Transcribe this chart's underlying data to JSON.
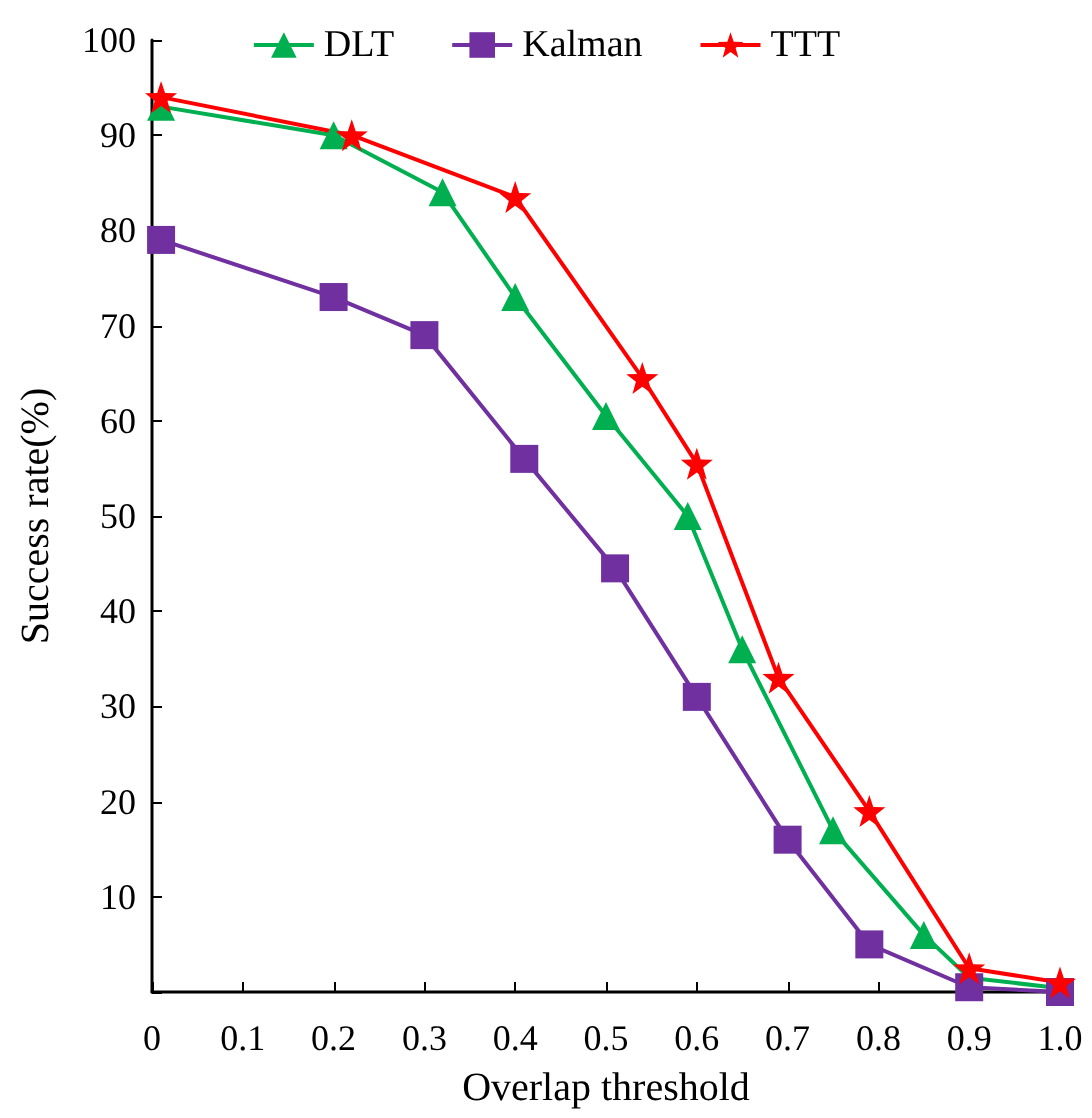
{
  "chart_data": {
    "type": "line",
    "xlabel": "Overlap threshold",
    "ylabel": "Success rate(%)",
    "xlim": [
      0,
      1
    ],
    "xticks": [
      0,
      0.1,
      0.2,
      0.3,
      0.4,
      0.5,
      0.6,
      0.7,
      0.8,
      0.9,
      {
        "value": 1,
        "label": "1.0"
      }
    ],
    "ylim": [
      0,
      100
    ],
    "yticks": [
      {
        "value": 0,
        "label": null
      },
      10,
      20,
      30,
      40,
      50,
      60,
      70,
      80,
      90,
      100
    ],
    "grid": false,
    "legend": "top",
    "line_style": "solid",
    "series": [
      {
        "name": "DLT",
        "color": "#00b050",
        "marker": "triangle",
        "x": [
          0.01,
          0.2,
          0.32,
          0.4,
          0.5,
          0.59,
          0.65,
          0.75,
          0.85,
          0.9,
          1.0
        ],
        "values": [
          93,
          90,
          84,
          73,
          60.5,
          50,
          36,
          17,
          6,
          1.5,
          0.4
        ]
      },
      {
        "name": "Kalman",
        "color": "#7030a0",
        "marker": "square",
        "x": [
          0.01,
          0.2,
          0.3,
          0.41,
          0.51,
          0.6,
          0.7,
          0.79,
          0.9,
          1.0
        ],
        "values": [
          79,
          73,
          69,
          56,
          44.5,
          31,
          16,
          5,
          0.5,
          0
        ]
      },
      {
        "name": "TTT",
        "color": "#ff0000",
        "marker": "star",
        "x": [
          0.01,
          0.22,
          0.4,
          0.54,
          0.6,
          0.69,
          0.79,
          0.9,
          1.0
        ],
        "values": [
          94,
          90,
          83.5,
          64.5,
          55.5,
          33,
          19,
          2.5,
          1
        ]
      }
    ]
  }
}
